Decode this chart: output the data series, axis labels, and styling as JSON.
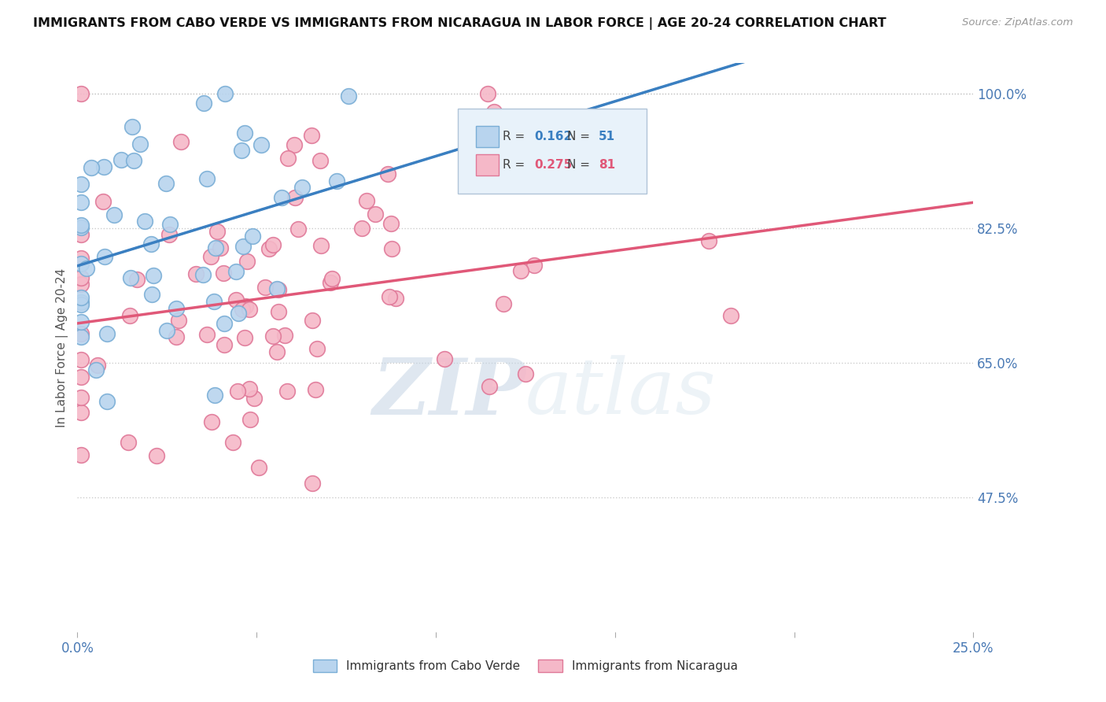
{
  "title": "IMMIGRANTS FROM CABO VERDE VS IMMIGRANTS FROM NICARAGUA IN LABOR FORCE | AGE 20-24 CORRELATION CHART",
  "source": "Source: ZipAtlas.com",
  "ylabel": "In Labor Force | Age 20-24",
  "x_min": 0.0,
  "x_max": 0.25,
  "y_min": 0.3,
  "y_max": 1.04,
  "right_yticks": [
    1.0,
    0.825,
    0.65,
    0.475
  ],
  "right_yticklabels": [
    "100.0%",
    "82.5%",
    "65.0%",
    "47.5%"
  ],
  "cabo_verde": {
    "R": 0.162,
    "N": 51,
    "color": "#b8d4ee",
    "edge_color": "#7aaed6",
    "line_color": "#3a7fc1",
    "label": "Immigrants from Cabo Verde"
  },
  "nicaragua": {
    "R": 0.275,
    "N": 81,
    "color": "#f5b8c8",
    "edge_color": "#e07898",
    "line_color": "#e05878",
    "label": "Immigrants from Nicaragua"
  },
  "watermark_zip": "ZIP",
  "watermark_atlas": "atlas",
  "legend_face": "#e8f0f8",
  "legend_edge": "#aabccc"
}
